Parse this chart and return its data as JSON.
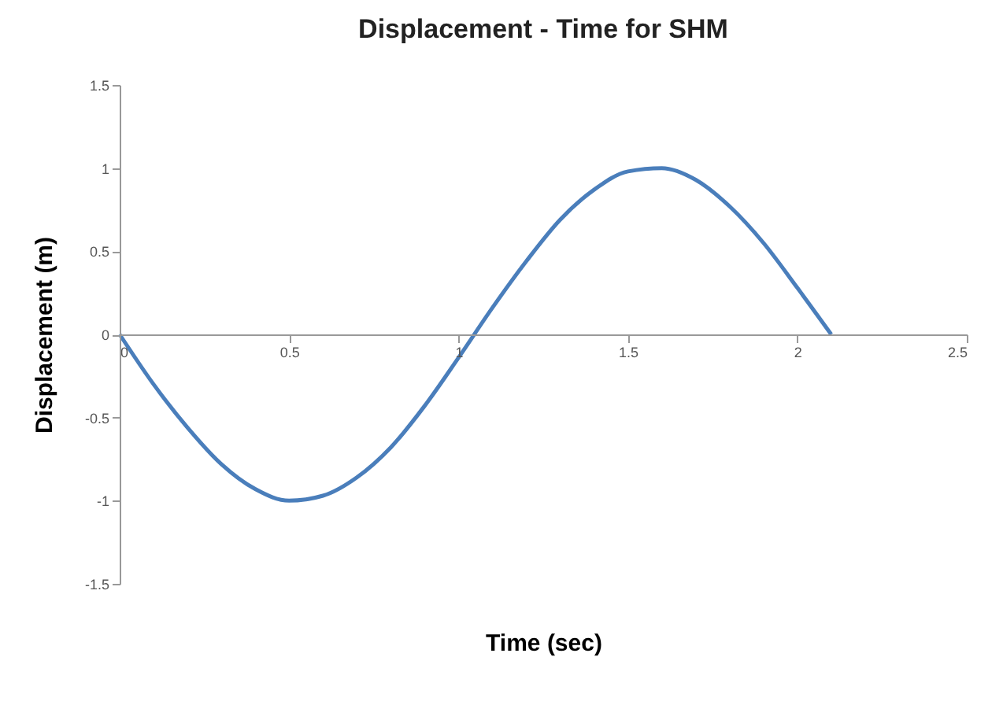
{
  "chart_data": {
    "type": "line",
    "title": "Displacement - Time for SHM",
    "xlabel": "Time (sec)",
    "ylabel": "Displacement  (m)",
    "x": [
      0,
      0.1,
      0.2,
      0.3,
      0.4,
      0.5,
      0.6,
      0.7,
      0.8,
      0.9,
      1.0,
      1.1,
      1.2,
      1.3,
      1.4,
      1.5,
      1.6,
      1.7,
      1.8,
      1.9,
      2.0,
      2.1
    ],
    "series": [
      {
        "color": "#4a7ebb",
        "values": [
          0,
          -0.3,
          -0.56,
          -0.78,
          -0.93,
          -1.0,
          -0.97,
          -0.86,
          -0.68,
          -0.43,
          -0.14,
          0.16,
          0.44,
          0.69,
          0.87,
          0.98,
          1.0,
          0.93,
          0.77,
          0.55,
          0.28,
          0
        ]
      }
    ],
    "xlim": [
      0,
      2.5
    ],
    "xticks": [
      0,
      0.5,
      1,
      1.5,
      2,
      2.5
    ],
    "ylim": [
      -1.5,
      1.5
    ],
    "yticks": [
      -1.5,
      -1,
      -0.5,
      0,
      0.5,
      1,
      1.5
    ],
    "grid": false,
    "marker": "none",
    "line_style": "solid"
  }
}
